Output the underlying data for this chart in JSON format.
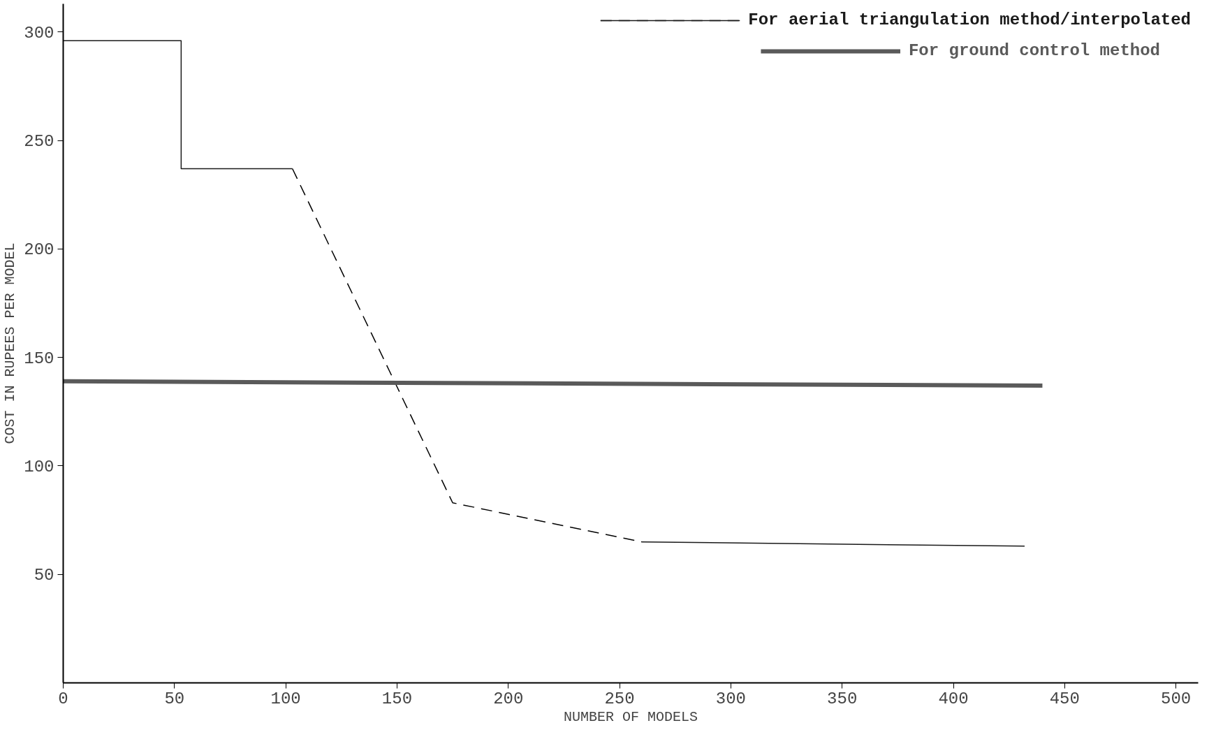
{
  "chart_data": {
    "type": "line",
    "xlabel": "NUMBER OF MODELS",
    "ylabel": "COST IN RUPEES PER MODEL",
    "xlim": [
      0,
      510
    ],
    "xticks": [
      0,
      50,
      100,
      150,
      200,
      250,
      300,
      350,
      400,
      450,
      500
    ],
    "ylim": [
      0,
      313
    ],
    "yticks": [
      50,
      100,
      150,
      200,
      250,
      300
    ],
    "grid": false,
    "legend": "top right",
    "marker": "none",
    "series": [
      {
        "name": "For aerial triangulation method/interpolated",
        "color": "#1a1a1a",
        "line_style": "solid",
        "x": [
          0,
          53,
          53,
          103,
          null,
          260,
          432
        ],
        "values": [
          296,
          296,
          237,
          237,
          null,
          65,
          63
        ]
      },
      {
        "color": "#000000",
        "line_style": "dashed",
        "x": [
          103,
          175,
          260
        ],
        "values": [
          237,
          83,
          65
        ]
      },
      {
        "name": "For ground control method",
        "color": "#5a5a5a",
        "line_style": "solid",
        "x": [
          0,
          440
        ],
        "values": [
          139,
          137
        ]
      }
    ]
  }
}
